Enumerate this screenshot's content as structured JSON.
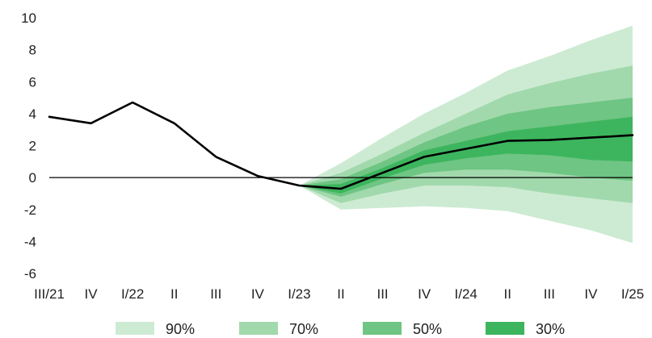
{
  "chart_data": {
    "type": "area",
    "title": "",
    "xlabel": "",
    "ylabel": "",
    "ylim": [
      -6,
      10
    ],
    "yticks": [
      10,
      8,
      6,
      4,
      2,
      0,
      -2,
      -4,
      -6
    ],
    "categories": [
      "III/21",
      "IV",
      "I/22",
      "II",
      "III",
      "IV",
      "I/23",
      "II",
      "III",
      "IV",
      "I/24",
      "II",
      "III",
      "IV",
      "I/25"
    ],
    "central": [
      3.8,
      3.4,
      4.7,
      3.4,
      1.3,
      0.1,
      -0.5,
      -0.7,
      0.3,
      1.3,
      1.8,
      2.3,
      2.35,
      2.5,
      2.65
    ],
    "fan_start_index": 6,
    "bands": [
      {
        "name": "90%",
        "color": "#cdebd3",
        "lower": [
          -0.5,
          -2.0,
          -1.9,
          -1.8,
          -1.9,
          -2.1,
          -2.7,
          -3.3,
          -4.1
        ],
        "upper": [
          -0.5,
          0.9,
          2.5,
          4.0,
          5.3,
          6.7,
          7.6,
          8.6,
          9.5
        ]
      },
      {
        "name": "70%",
        "color": "#a1d9ac",
        "lower": [
          -0.5,
          -1.6,
          -1.0,
          -0.5,
          -0.5,
          -0.6,
          -1.0,
          -1.3,
          -1.6
        ],
        "upper": [
          -0.5,
          0.3,
          1.5,
          2.8,
          4.0,
          5.2,
          5.9,
          6.5,
          7.0
        ]
      },
      {
        "name": "50%",
        "color": "#6fc583",
        "lower": [
          -0.5,
          -1.2,
          -0.4,
          0.3,
          0.5,
          0.5,
          0.3,
          0.0,
          -0.2
        ],
        "upper": [
          -0.5,
          -0.1,
          1.0,
          2.2,
          3.2,
          4.0,
          4.4,
          4.7,
          5.0
        ]
      },
      {
        "name": "30%",
        "color": "#3db55e",
        "lower": [
          -0.5,
          -1.0,
          -0.05,
          0.8,
          1.2,
          1.5,
          1.4,
          1.1,
          1.0
        ],
        "upper": [
          -0.5,
          -0.4,
          0.6,
          1.7,
          2.3,
          2.9,
          3.2,
          3.5,
          3.8
        ]
      }
    ],
    "legend": [
      "90%",
      "70%",
      "50%",
      "30%"
    ],
    "legend_position": "bottom",
    "grid": false,
    "zero_line": true
  }
}
